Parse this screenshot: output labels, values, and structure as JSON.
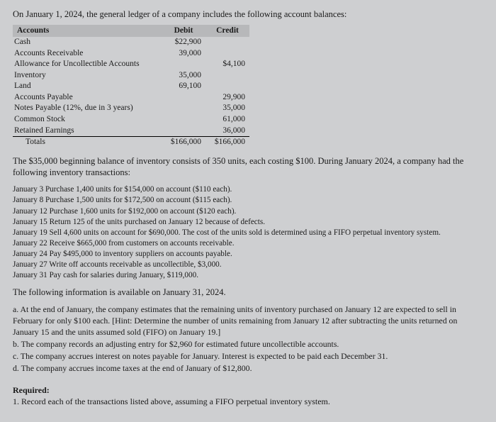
{
  "intro": "On January 1, 2024, the general ledger of a company includes the following account balances:",
  "table": {
    "headers": {
      "accounts": "Accounts",
      "debit": "Debit",
      "credit": "Credit"
    },
    "rows": [
      {
        "name": "Cash",
        "debit": "$22,900",
        "credit": ""
      },
      {
        "name": "Accounts Receivable",
        "debit": "39,000",
        "credit": ""
      },
      {
        "name": "Allowance for Uncollectible Accounts",
        "debit": "",
        "credit": "$4,100"
      },
      {
        "name": "Inventory",
        "debit": "35,000",
        "credit": ""
      },
      {
        "name": "Land",
        "debit": "69,100",
        "credit": ""
      },
      {
        "name": "Accounts Payable",
        "debit": "",
        "credit": "29,900"
      },
      {
        "name": "Notes Payable (12%, due in 3 years)",
        "debit": "",
        "credit": "35,000"
      },
      {
        "name": "Common Stock",
        "debit": "",
        "credit": "61,000"
      },
      {
        "name": "Retained Earnings",
        "debit": "",
        "credit": "36,000"
      }
    ],
    "totals": {
      "label": "Totals",
      "debit": "$166,000",
      "credit": "$166,000"
    }
  },
  "para1": "The $35,000 beginning balance of inventory consists of 350 units, each costing $100. During January 2024, a company had the following inventory transactions:",
  "transactions": [
    "January 3  Purchase 1,400 units for $154,000 on account ($110 each).",
    "January 8  Purchase 1,500 units for $172,500 on account ($115 each).",
    "January 12 Purchase 1,600 units for $192,000 on account ($120 each).",
    "January 15 Return 125 of the units purchased on January 12 because of defects.",
    "January 19 Sell 4,600 units on account for $690,000. The cost of the units sold is determined using a FIFO perpetual inventory system.",
    "January 22 Receive $665,000 from customers on accounts receivable.",
    "January 24 Pay $495,000 to inventory suppliers on accounts payable.",
    "January 27 Write off accounts receivable as uncollectible, $3,000.",
    "January 31 Pay cash for salaries during January, $119,000."
  ],
  "para2": "The following information is available on January 31, 2024.",
  "items": [
    "a. At the end of January, the company estimates that the remaining units of inventory purchased on January 12 are expected to sell in February for only $100 each. [Hint: Determine the number of units remaining from January 12 after subtracting the units returned on January 15 and the units assumed sold (FIFO) on January 19.]",
    "b. The company records an adjusting entry for $2,960 for estimated future uncollectible accounts.",
    "c. The company accrues interest on notes payable for January. Interest is expected to be paid each December 31.",
    "d. The company accrues income taxes at the end of January of $12,800."
  ],
  "required": {
    "label": "Required:",
    "text": "1. Record each of the transactions listed above, assuming a FIFO perpetual inventory system."
  }
}
